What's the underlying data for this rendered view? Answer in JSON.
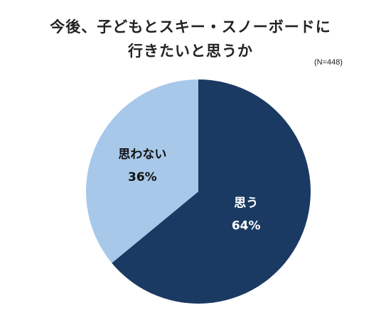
{
  "chart_data": {
    "type": "pie",
    "title_lines": [
      "今後、子どもとスキー・スノーボードに",
      "行きたいと思うか"
    ],
    "sample_size": "(N=448)",
    "slices": [
      {
        "label": "思う",
        "value": 64,
        "value_label": "64%",
        "color": "#1a3a63",
        "text_color": "#ffffff"
      },
      {
        "label": "思わない",
        "value": 36,
        "value_label": "36%",
        "color": "#a8c8ea",
        "text_color": "#111111"
      }
    ]
  }
}
